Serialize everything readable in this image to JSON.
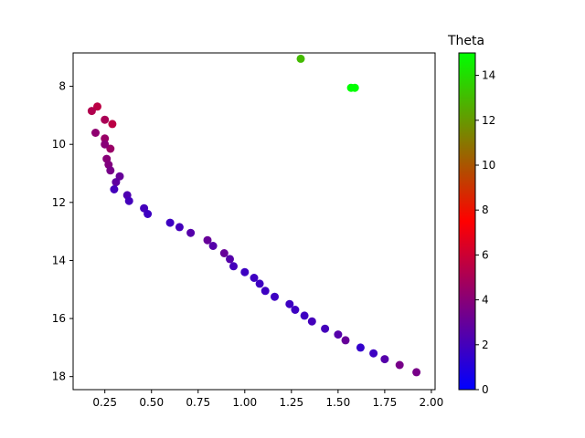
{
  "chart_data": {
    "type": "scatter",
    "title": "",
    "xlabel": "",
    "ylabel": "",
    "xlim": [
      0.08,
      2.02
    ],
    "ylim": [
      18.45,
      6.85
    ],
    "y_inverted": true,
    "x_ticks": [
      0.25,
      0.5,
      0.75,
      1.0,
      1.25,
      1.5,
      1.75,
      2.0
    ],
    "x_tick_labels": [
      "0.25",
      "0.50",
      "0.75",
      "1.00",
      "1.25",
      "1.50",
      "1.75",
      "2.00"
    ],
    "y_ticks": [
      8,
      10,
      12,
      14,
      16,
      18
    ],
    "y_tick_labels": [
      "8",
      "10",
      "12",
      "14",
      "16",
      "18"
    ],
    "grid": false,
    "colorbar": {
      "title": "Theta",
      "range": [
        0,
        15
      ],
      "ticks": [
        0,
        2,
        4,
        6,
        8,
        10,
        12,
        14
      ],
      "tick_labels": [
        "0",
        "2",
        "4",
        "6",
        "8",
        "10",
        "12",
        "14"
      ],
      "colors": [
        "#0000ff",
        "#ff0000",
        "#00ff00"
      ]
    },
    "series": [
      {
        "x": [
          1.3,
          1.57,
          1.59,
          0.21,
          0.18,
          0.25,
          0.29,
          0.2,
          0.25,
          0.28,
          0.25,
          0.26,
          0.27,
          0.28,
          0.33,
          0.31,
          0.3,
          0.37,
          0.38,
          0.46,
          0.48,
          0.6,
          0.65,
          0.71,
          0.8,
          0.83,
          0.89,
          0.92,
          0.94,
          1.0,
          1.05,
          1.08,
          1.11,
          1.16,
          1.24,
          1.27,
          1.32,
          1.36,
          1.43,
          1.5,
          1.54,
          1.62,
          1.69,
          1.75,
          1.83,
          1.92
        ],
        "y": [
          7.05,
          8.05,
          8.05,
          8.7,
          8.85,
          9.15,
          9.3,
          9.6,
          9.8,
          10.15,
          10.0,
          10.5,
          10.7,
          10.9,
          11.1,
          11.3,
          11.55,
          11.75,
          11.95,
          12.2,
          12.4,
          12.7,
          12.85,
          13.05,
          13.3,
          13.5,
          13.75,
          13.95,
          14.2,
          14.4,
          14.6,
          14.8,
          15.05,
          15.25,
          15.5,
          15.7,
          15.9,
          16.1,
          16.35,
          16.55,
          16.75,
          17.0,
          17.2,
          17.4,
          17.6,
          17.85
        ],
        "theta": [
          13.0,
          15.0,
          15.0,
          5.5,
          5.2,
          5.0,
          5.5,
          4.2,
          4.5,
          4.5,
          4.0,
          4.0,
          3.8,
          3.5,
          3.0,
          2.8,
          2.0,
          2.3,
          2.0,
          2.0,
          1.8,
          1.8,
          2.0,
          2.5,
          3.0,
          2.5,
          3.0,
          2.5,
          2.0,
          1.8,
          1.8,
          1.8,
          1.8,
          1.8,
          1.8,
          1.8,
          1.8,
          2.0,
          2.0,
          2.5,
          3.0,
          1.5,
          1.8,
          2.5,
          3.5,
          3.5
        ]
      }
    ]
  }
}
